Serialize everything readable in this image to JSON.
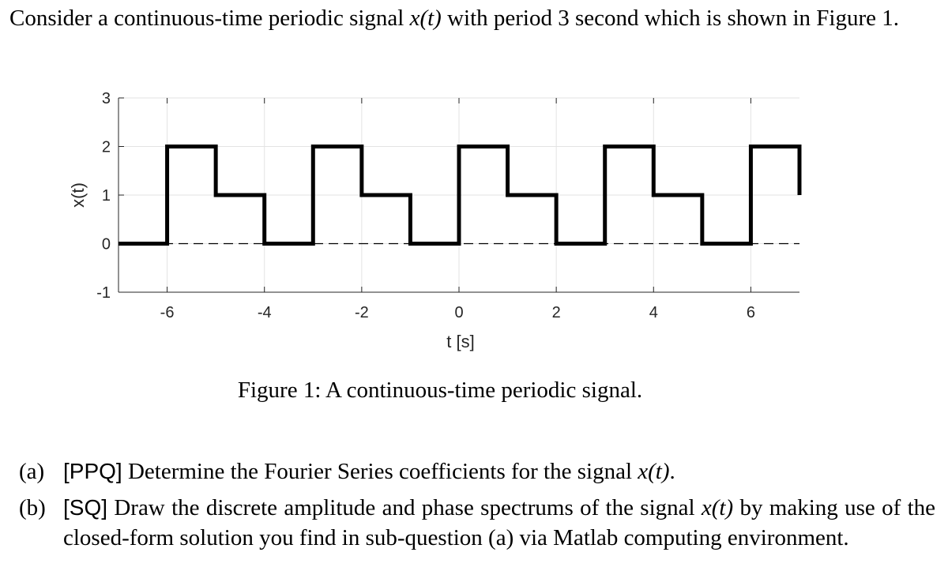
{
  "intro": {
    "part1": "Consider a continuous-time periodic signal ",
    "signal": "x(t)",
    "part2": " with period 3 second which is shown in Figure 1."
  },
  "chart_data": {
    "type": "line",
    "xlabel": "t [s]",
    "ylabel": "x(t)",
    "xlim": [
      -7,
      7
    ],
    "ylim": [
      -1,
      3
    ],
    "xticks": [
      -6,
      -4,
      -2,
      0,
      2,
      4,
      6
    ],
    "yticks": [
      -1,
      0,
      1,
      2,
      3
    ],
    "grid": true,
    "period": 3,
    "series": [
      {
        "x": [
          -7,
          -6,
          -6,
          -5,
          -5,
          -4,
          -4,
          -3,
          -3,
          -2,
          -2,
          -1,
          -1,
          0,
          0,
          1,
          1,
          2,
          2,
          3,
          3,
          4,
          4,
          5,
          5,
          6,
          6,
          7,
          7
        ],
        "y": [
          0,
          0,
          2,
          2,
          1,
          1,
          0,
          0,
          2,
          2,
          1,
          1,
          0,
          0,
          2,
          2,
          1,
          1,
          0,
          0,
          2,
          2,
          1,
          1,
          0,
          0,
          2,
          2,
          1
        ]
      }
    ],
    "reference_line": {
      "y": 0,
      "style": "dashed"
    }
  },
  "caption": "Figure 1: A continuous-time periodic signal.",
  "questions": [
    {
      "label": "(a)",
      "tag": "[PPQ]",
      "text1": " Determine the Fourier Series coefficients for the signal ",
      "math": "x(t)",
      "text2": "."
    },
    {
      "label": "(b)",
      "tag": "[SQ]",
      "text1": " Draw the discrete amplitude and phase spectrums of the signal ",
      "math": "x(t)",
      "text2": " by making use of the closed-form solution you find in sub-question (a) via Matlab computing environment."
    }
  ]
}
